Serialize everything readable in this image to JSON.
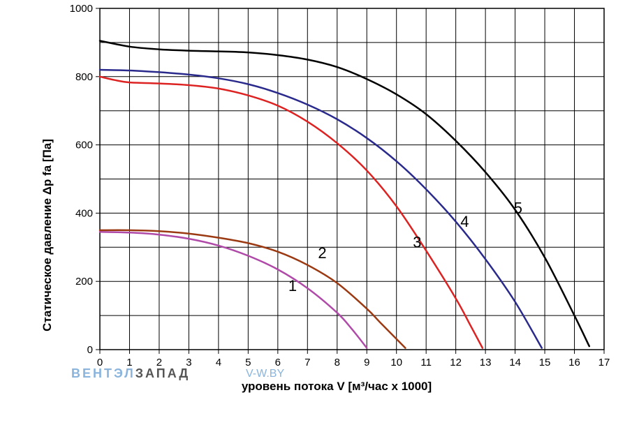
{
  "chart_data": {
    "type": "line",
    "xlabel": "уровень потока  V [м³/час х 1000]",
    "ylabel": "Статическое давление  Δp fa [Па]",
    "xlim": [
      0,
      17
    ],
    "ylim": [
      0,
      1000
    ],
    "x_ticks": [
      0,
      1,
      2,
      3,
      4,
      5,
      6,
      7,
      8,
      9,
      10,
      11,
      12,
      13,
      14,
      15,
      16,
      17
    ],
    "y_ticks": [
      0,
      200,
      400,
      600,
      800,
      1000
    ],
    "grid": true,
    "series": [
      {
        "name": "1",
        "color": "#b04aa8",
        "label_at": [
          6.5,
          172
        ],
        "x": [
          0,
          1,
          2,
          3,
          4,
          5,
          6,
          7,
          8,
          8.5,
          9
        ],
        "y": [
          345,
          343,
          337,
          325,
          305,
          275,
          235,
          180,
          108,
          60,
          5
        ]
      },
      {
        "name": "2",
        "color": "#9b3a12",
        "label_at": [
          7.5,
          268
        ],
        "x": [
          0,
          1,
          2,
          3,
          4,
          5,
          6,
          7,
          8,
          9,
          9.5,
          10.3
        ],
        "y": [
          350,
          350,
          347,
          340,
          328,
          312,
          287,
          248,
          195,
          120,
          75,
          5
        ]
      },
      {
        "name": "3",
        "color": "#dd2222",
        "label_at": [
          10.7,
          300
        ],
        "x": [
          0,
          0.5,
          1,
          2,
          3,
          4,
          5,
          6,
          7,
          8,
          9,
          10,
          11,
          12,
          12.5,
          12.9
        ],
        "y": [
          800,
          790,
          783,
          780,
          775,
          765,
          745,
          715,
          668,
          605,
          525,
          420,
          290,
          150,
          70,
          5
        ]
      },
      {
        "name": "4",
        "color": "#2a2a8c",
        "label_at": [
          12.3,
          360
        ],
        "x": [
          0,
          1,
          2,
          3,
          4,
          5,
          6,
          7,
          8,
          9,
          10,
          11,
          12,
          13,
          14,
          14.9
        ],
        "y": [
          820,
          818,
          813,
          806,
          795,
          778,
          752,
          718,
          675,
          620,
          552,
          470,
          375,
          265,
          140,
          5
        ]
      },
      {
        "name": "5",
        "color": "#000000",
        "label_at": [
          14.1,
          400
        ],
        "x": [
          0,
          1,
          2,
          3,
          4,
          5,
          6,
          7,
          8,
          9,
          10,
          11,
          12,
          13,
          14,
          15,
          16,
          16.5
        ],
        "y": [
          905,
          888,
          880,
          876,
          874,
          871,
          863,
          850,
          828,
          793,
          748,
          690,
          612,
          520,
          410,
          270,
          100,
          10
        ]
      }
    ]
  },
  "watermark": {
    "brand_light": "ВЕНТЭЛ",
    "brand_dark": "ЗАПАД",
    "site": "V-W.BY",
    "light_color": "#8ab4dc",
    "dark_color": "#555555",
    "site_color": "#8ab4dc"
  }
}
